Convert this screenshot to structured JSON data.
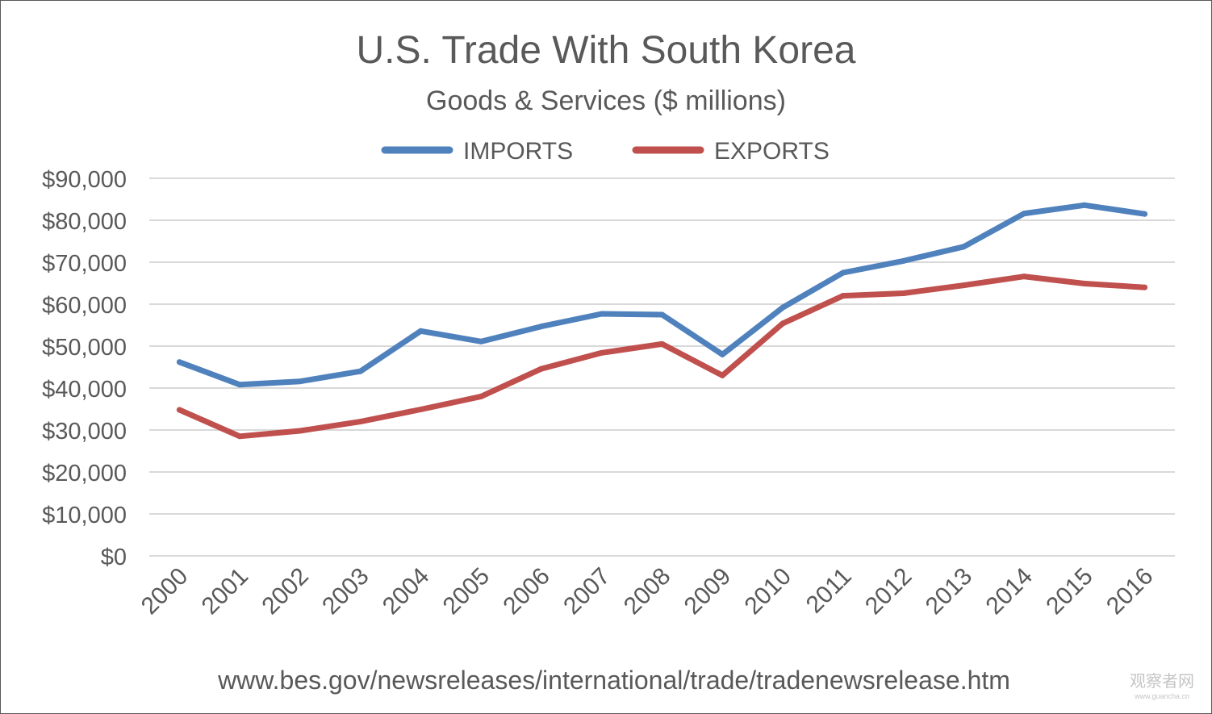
{
  "chart_data": {
    "type": "line",
    "title": "U.S. Trade With South Korea",
    "subtitle": "Goods & Services ($ millions)",
    "x": [
      "2000",
      "2001",
      "2002",
      "2003",
      "2004",
      "2005",
      "2006",
      "2007",
      "2008",
      "2009",
      "2010",
      "2011",
      "2012",
      "2013",
      "2014",
      "2015",
      "2016"
    ],
    "series": [
      {
        "name": "IMPORTS",
        "color": "#4f81bd",
        "values": [
          46200,
          40800,
          41600,
          44000,
          53600,
          51100,
          54700,
          57700,
          57500,
          48000,
          59200,
          67500,
          70300,
          73700,
          81600,
          83600,
          81500
        ]
      },
      {
        "name": "EXPORTS",
        "color": "#c0504d",
        "values": [
          34800,
          28500,
          29800,
          32000,
          34900,
          38000,
          44600,
          48400,
          50500,
          43000,
          55400,
          62000,
          62600,
          64500,
          66600,
          64900,
          64000
        ]
      }
    ],
    "ylim": [
      0,
      90000
    ],
    "yticks": [
      0,
      10000,
      20000,
      30000,
      40000,
      50000,
      60000,
      70000,
      80000,
      90000
    ],
    "ytick_labels": [
      "$0",
      "$10,000",
      "$20,000",
      "$30,000",
      "$40,000",
      "$50,000",
      "$60,000",
      "$70,000",
      "$80,000",
      "$90,000"
    ],
    "grid": true,
    "legend_position": "top-center",
    "source": "www.bes.gov/newsreleases/international/trade/tradenewsrelease.htm"
  }
}
